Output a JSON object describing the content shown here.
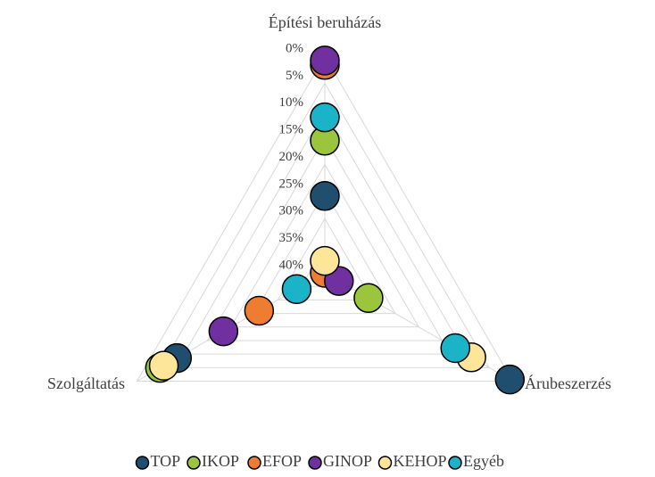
{
  "chart_data": {
    "type": "radar",
    "categories": [
      "Építési beruházás",
      "Árubeszerzés",
      "Szolgáltatás"
    ],
    "reversed": true,
    "ylim": [
      0,
      40
    ],
    "yticks": [
      {
        "value": 0,
        "label": "0%"
      },
      {
        "value": 5,
        "label": "5%"
      },
      {
        "value": 10,
        "label": "10%"
      },
      {
        "value": 15,
        "label": "15%"
      },
      {
        "value": 20,
        "label": "20%"
      },
      {
        "value": 25,
        "label": "25%"
      },
      {
        "value": 30,
        "label": "30%"
      },
      {
        "value": 35,
        "label": "35%"
      },
      {
        "value": 40,
        "label": "40%"
      }
    ],
    "grid": true,
    "legend": "bottom",
    "series": [
      {
        "name": "TOP",
        "color": "#1f4e6e",
        "values": [
          25.8,
          0.6,
          8.5
        ]
      },
      {
        "name": "IKOP",
        "color": "#9bc53d",
        "values": [
          15.6,
          30.7,
          4.9
        ]
      },
      {
        "name": "EFOP",
        "color": "#ee7d31",
        "values": [
          1.6,
          40,
          26
        ]
      },
      {
        "name": "GINOP",
        "color": "#7030a0",
        "values": [
          0.8,
          37,
          18.4
        ]
      },
      {
        "name": "KEHOP",
        "color": "#fde59a",
        "values": [
          37.8,
          8.8,
          5.7
        ]
      },
      {
        "name": "Egyéb",
        "color": "#1bb3c8",
        "values": [
          11.3,
          12.2,
          34
        ]
      }
    ]
  }
}
